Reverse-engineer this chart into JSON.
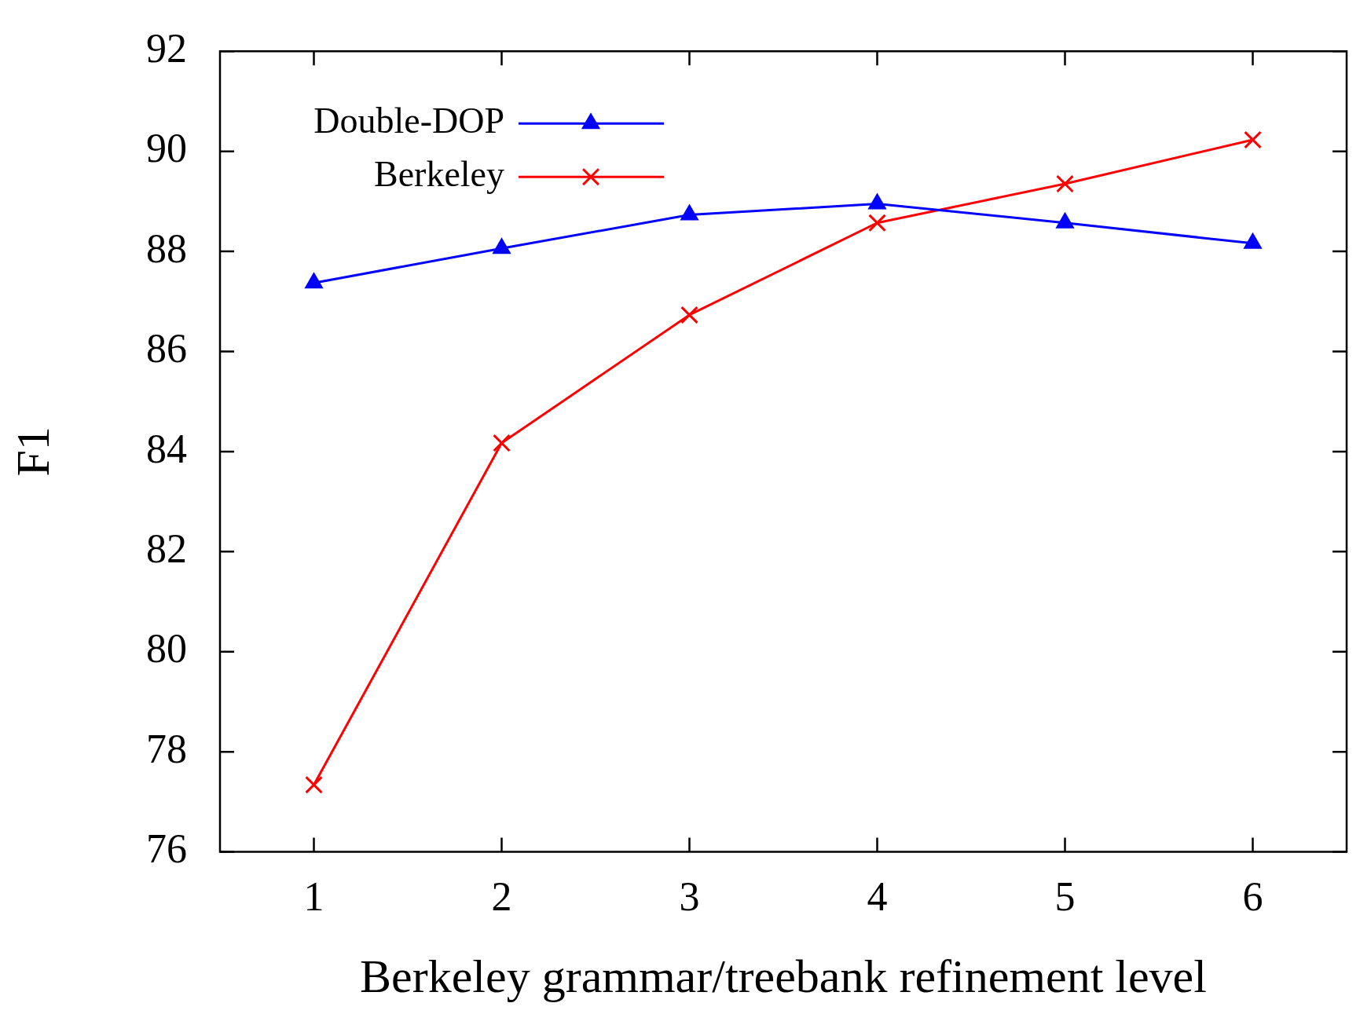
{
  "chart_data": {
    "type": "line",
    "xlabel": "Berkeley grammar/treebank refinement level",
    "ylabel": "F1",
    "x": [
      1,
      2,
      3,
      4,
      5,
      6
    ],
    "series": [
      {
        "name": "Double-DOP",
        "color": "#0000ff",
        "marker": "triangle",
        "values": [
          87.37,
          88.06,
          88.73,
          88.95,
          88.57,
          88.16
        ]
      },
      {
        "name": "Berkeley",
        "color": "#ff0000",
        "marker": "cross",
        "values": [
          77.34,
          84.17,
          86.73,
          88.57,
          89.35,
          90.23
        ]
      }
    ],
    "xlim": [
      0.5,
      6.5
    ],
    "xticks": [
      1,
      2,
      3,
      4,
      5,
      6
    ],
    "ylim": [
      76,
      92
    ],
    "yticks": [
      76,
      78,
      80,
      82,
      84,
      86,
      88,
      90,
      92
    ],
    "grid": false,
    "legend": "top left",
    "line_style": "solid"
  }
}
